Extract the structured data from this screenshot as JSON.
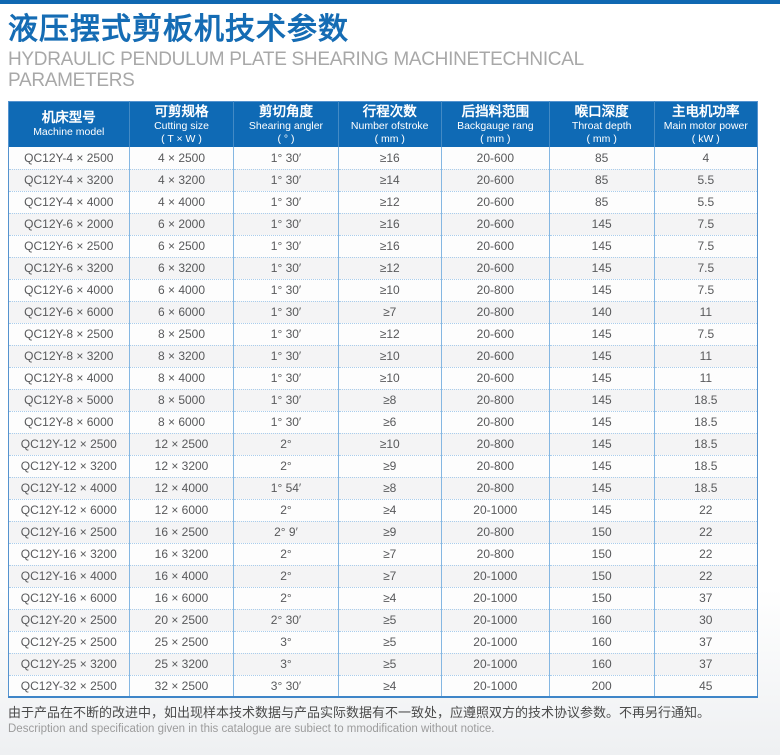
{
  "header": {
    "title_zh": "液压摆式剪板机技术参数",
    "subtitle_en_line1": "HYDRAULIC PENDULUM PLATE SHEARING MACHINETECHNICAL",
    "subtitle_en_line2": "PARAMETERS"
  },
  "table": {
    "columns": [
      {
        "zh": "机床型号",
        "en": "Machine model",
        "unit": ""
      },
      {
        "zh": "可剪规格",
        "en": "Cutting size",
        "unit": "( T × W )"
      },
      {
        "zh": "剪切角度",
        "en": "Shearing angler",
        "unit": "( ° )"
      },
      {
        "zh": "行程次数",
        "en": "Number ofstroke",
        "unit": "( mm )"
      },
      {
        "zh": "后挡料范围",
        "en": "Backgauge rang",
        "unit": "( mm )"
      },
      {
        "zh": "喉口深度",
        "en": "Throat depth",
        "unit": "( mm )"
      },
      {
        "zh": "主电机功率",
        "en": "Main motor power",
        "unit": "( kW )"
      }
    ],
    "rows": [
      [
        "QC12Y-4 × 2500",
        "4 × 2500",
        "1° 30′",
        "≥16",
        "20-600",
        "85",
        "4"
      ],
      [
        "QC12Y-4 × 3200",
        "4 × 3200",
        "1° 30′",
        "≥14",
        "20-600",
        "85",
        "5.5"
      ],
      [
        "QC12Y-4 × 4000",
        "4 × 4000",
        "1° 30′",
        "≥12",
        "20-600",
        "85",
        "5.5"
      ],
      [
        "QC12Y-6 × 2000",
        "6 × 2000",
        "1° 30′",
        "≥16",
        "20-600",
        "145",
        "7.5"
      ],
      [
        "QC12Y-6 × 2500",
        "6 × 2500",
        "1° 30′",
        "≥16",
        "20-600",
        "145",
        "7.5"
      ],
      [
        "QC12Y-6 × 3200",
        "6 × 3200",
        "1° 30′",
        "≥12",
        "20-600",
        "145",
        "7.5"
      ],
      [
        "QC12Y-6 × 4000",
        "6 × 4000",
        "1° 30′",
        "≥10",
        "20-800",
        "145",
        "7.5"
      ],
      [
        "QC12Y-6 × 6000",
        "6 × 6000",
        "1° 30′",
        "≥7",
        "20-800",
        "140",
        "11"
      ],
      [
        "QC12Y-8 × 2500",
        "8 × 2500",
        "1° 30′",
        "≥12",
        "20-600",
        "145",
        "7.5"
      ],
      [
        "QC12Y-8 × 3200",
        "8 × 3200",
        "1° 30′",
        "≥10",
        "20-600",
        "145",
        "11"
      ],
      [
        "QC12Y-8 × 4000",
        "8 × 4000",
        "1° 30′",
        "≥10",
        "20-600",
        "145",
        "11"
      ],
      [
        "QC12Y-8 × 5000",
        "8 × 5000",
        "1° 30′",
        "≥8",
        "20-800",
        "145",
        "18.5"
      ],
      [
        "QC12Y-8 × 6000",
        "8 × 6000",
        "1° 30′",
        "≥6",
        "20-800",
        "145",
        "18.5"
      ],
      [
        "QC12Y-12 × 2500",
        "12 × 2500",
        "2°",
        "≥10",
        "20-800",
        "145",
        "18.5"
      ],
      [
        "QC12Y-12 × 3200",
        "12 × 3200",
        "2°",
        "≥9",
        "20-800",
        "145",
        "18.5"
      ],
      [
        "QC12Y-12 × 4000",
        "12 × 4000",
        "1° 54′",
        "≥8",
        "20-800",
        "145",
        "18.5"
      ],
      [
        "QC12Y-12 × 6000",
        "12 × 6000",
        "2°",
        "≥4",
        "20-1000",
        "145",
        "22"
      ],
      [
        "QC12Y-16 × 2500",
        "16 × 2500",
        "2° 9′",
        "≥9",
        "20-800",
        "150",
        "22"
      ],
      [
        "QC12Y-16 × 3200",
        "16 × 3200",
        "2°",
        "≥7",
        "20-800",
        "150",
        "22"
      ],
      [
        "QC12Y-16 × 4000",
        "16 × 4000",
        "2°",
        "≥7",
        "20-1000",
        "150",
        "22"
      ],
      [
        "QC12Y-16 × 6000",
        "16 × 6000",
        "2°",
        "≥4",
        "20-1000",
        "150",
        "37"
      ],
      [
        "QC12Y-20 × 2500",
        "20 × 2500",
        "2° 30′",
        "≥5",
        "20-1000",
        "160",
        "30"
      ],
      [
        "QC12Y-25 × 2500",
        "25 × 2500",
        "3°",
        "≥5",
        "20-1000",
        "160",
        "37"
      ],
      [
        "QC12Y-25 × 3200",
        "25 × 3200",
        "3°",
        "≥5",
        "20-1000",
        "160",
        "37"
      ],
      [
        "QC12Y-32 × 2500",
        "32 × 2500",
        "3° 30′",
        "≥4",
        "20-1000",
        "200",
        "45"
      ]
    ]
  },
  "footer": {
    "note_zh": "由于产品在不断的改进中，如出现样本技术数据与产品实际数据有不一致处，应遵照双方的技术协议参数。不再另行通知。",
    "note_en": "Description and specification given in this catalogue are subiect to mmodification without notice."
  },
  "colors": {
    "accent_blue": "#0f6ab5",
    "title_blue": "#156cb4",
    "table_border": "#5593cf",
    "row_stripe": "#f4f4f5",
    "cell_text": "#58595b",
    "subtitle_gray": "#a8a8a8"
  }
}
